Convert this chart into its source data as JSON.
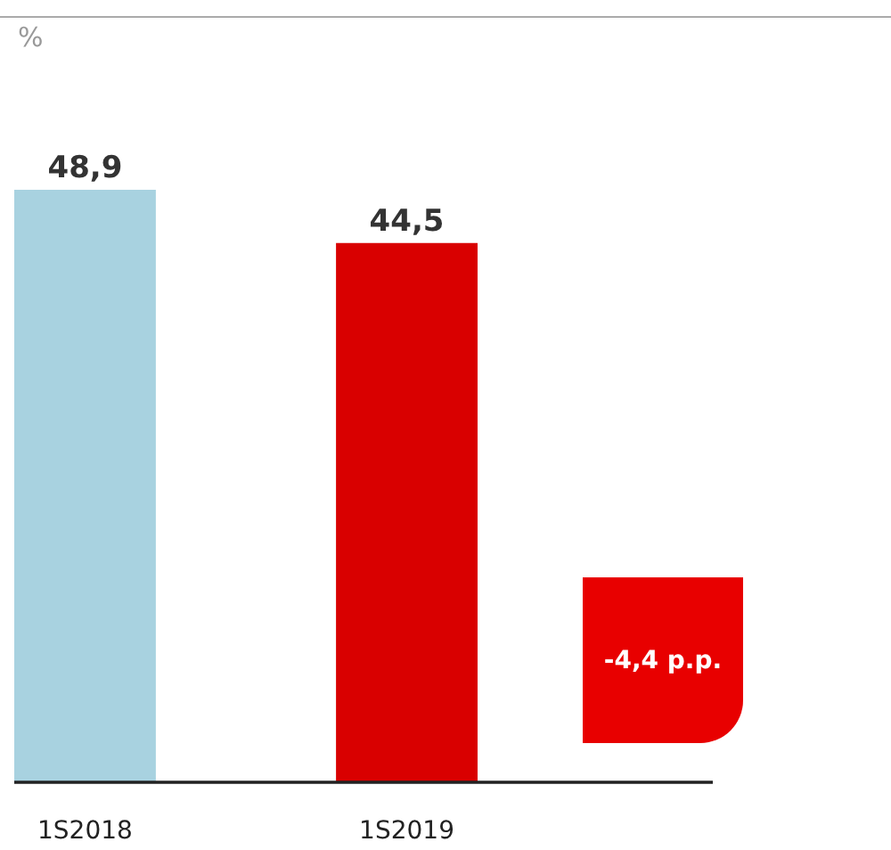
{
  "chart_data": {
    "type": "bar",
    "ylabel": "%",
    "categories": [
      "1S2018",
      "1S2019"
    ],
    "values": [
      48.9,
      44.5
    ],
    "colors": [
      "#a8d2e0",
      "#d90000"
    ],
    "value_labels": [
      "48,9",
      "44,5"
    ],
    "ylim": [
      0,
      55
    ],
    "annotations": [
      "-4,4 p.p."
    ]
  }
}
